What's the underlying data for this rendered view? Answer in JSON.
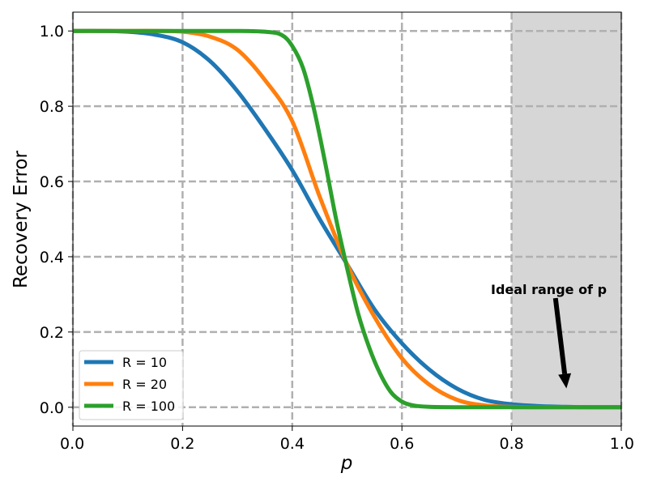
{
  "chart_data": {
    "type": "line",
    "title": "",
    "xlabel": "p",
    "ylabel": "Recovery Error",
    "xlim": [
      0.0,
      1.0
    ],
    "ylim": [
      -0.05,
      1.05
    ],
    "x_ticks": [
      "0.0",
      "0.2",
      "0.4",
      "0.6",
      "0.8",
      "1.0"
    ],
    "y_ticks": [
      "0.0",
      "0.2",
      "0.4",
      "0.6",
      "0.8",
      "1.0"
    ],
    "grid": true,
    "legend_position": "lower-left",
    "shaded_region": {
      "x_from": 0.8,
      "x_to": 1.0,
      "color": "#d6d6d6"
    },
    "annotation": {
      "text": "Ideal range of p",
      "arrow_from": [
        0.88,
        0.29
      ],
      "arrow_to": [
        0.9,
        0.05
      ]
    },
    "series": [
      {
        "name": "R = 10",
        "color": "#1f77b4",
        "x": [
          0.0,
          0.05,
          0.1,
          0.15,
          0.2,
          0.25,
          0.3,
          0.35,
          0.4,
          0.45,
          0.5,
          0.55,
          0.6,
          0.65,
          0.7,
          0.75,
          0.8,
          0.85,
          0.9,
          0.95,
          1.0
        ],
        "y": [
          1.0,
          1.0,
          0.998,
          0.99,
          0.97,
          0.92,
          0.84,
          0.74,
          0.63,
          0.5,
          0.38,
          0.26,
          0.17,
          0.1,
          0.05,
          0.02,
          0.008,
          0.003,
          0.001,
          0.0,
          0.0
        ]
      },
      {
        "name": "R = 20",
        "color": "#ff7f0e",
        "x": [
          0.0,
          0.05,
          0.1,
          0.15,
          0.2,
          0.25,
          0.3,
          0.35,
          0.4,
          0.45,
          0.5,
          0.55,
          0.6,
          0.65,
          0.7,
          0.75,
          0.8,
          0.85,
          0.9,
          0.95,
          1.0
        ],
        "y": [
          1.0,
          1.0,
          1.0,
          1.0,
          0.998,
          0.985,
          0.95,
          0.87,
          0.76,
          0.56,
          0.38,
          0.24,
          0.13,
          0.06,
          0.02,
          0.005,
          0.001,
          0.0,
          0.0,
          0.0,
          0.0
        ]
      },
      {
        "name": "R = 100",
        "color": "#2ca02c",
        "x": [
          0.0,
          0.1,
          0.2,
          0.3,
          0.35,
          0.38,
          0.4,
          0.42,
          0.44,
          0.46,
          0.48,
          0.5,
          0.52,
          0.54,
          0.56,
          0.58,
          0.6,
          0.62,
          0.65,
          0.7,
          0.8,
          0.9,
          1.0
        ],
        "y": [
          1.0,
          1.0,
          1.0,
          1.0,
          0.998,
          0.99,
          0.96,
          0.9,
          0.79,
          0.65,
          0.5,
          0.37,
          0.25,
          0.16,
          0.09,
          0.04,
          0.015,
          0.005,
          0.001,
          0.0,
          0.0,
          0.0,
          0.0
        ]
      }
    ]
  }
}
